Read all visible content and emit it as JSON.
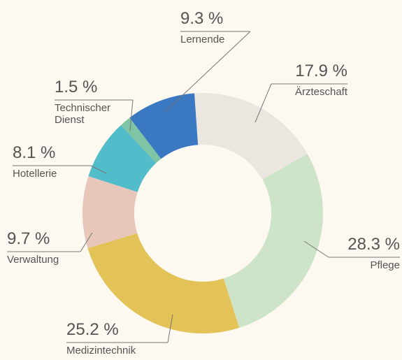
{
  "chart_data": {
    "type": "donut",
    "categories": [
      "Ärzteschaft",
      "Pflege",
      "Medizintechnik",
      "Verwaltung",
      "Hotellerie",
      "Technischer Dienst",
      "Lernende"
    ],
    "values": [
      17.9,
      28.3,
      25.2,
      9.7,
      8.1,
      1.5,
      9.3
    ],
    "value_labels": [
      "17.9 %",
      "28.3 %",
      "25.2 %",
      "9.7 %",
      "8.1 %",
      "1.5 %",
      "9.3 %"
    ],
    "colors": [
      "#ebe6e0",
      "#cde4c9",
      "#e3c257",
      "#e8c7bb",
      "#52bccb",
      "#7fc4a4",
      "#3b78c2"
    ]
  }
}
